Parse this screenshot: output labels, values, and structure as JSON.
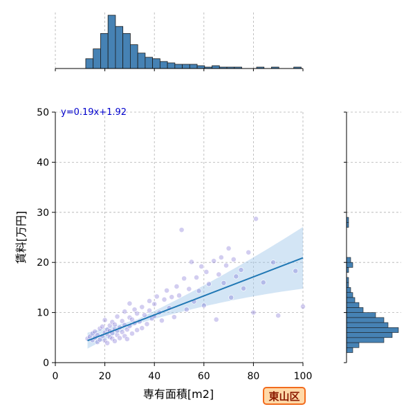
{
  "chart_data": {
    "type": "scatter",
    "xlabel": "専有面積[m2]",
    "ylabel": "賃料[万円]",
    "xlim": [
      0,
      100
    ],
    "ylim": [
      0,
      50
    ],
    "xticks": [
      0,
      20,
      40,
      60,
      80,
      100
    ],
    "yticks": [
      0,
      10,
      20,
      30,
      40,
      50
    ],
    "grid": true,
    "regression": {
      "label": "y=0.19x+1.92",
      "slope": 0.19,
      "intercept": 1.92,
      "ci_band": true
    },
    "scatter_points": [
      [
        13,
        4.8
      ],
      [
        14,
        5.2
      ],
      [
        15,
        4.5
      ],
      [
        15,
        5.8
      ],
      [
        16,
        6.2
      ],
      [
        16,
        5.0
      ],
      [
        17,
        4.1
      ],
      [
        17,
        5.5
      ],
      [
        18,
        6.8
      ],
      [
        18,
        4.6
      ],
      [
        19,
        5.3
      ],
      [
        19,
        7.2
      ],
      [
        20,
        6.0
      ],
      [
        20,
        4.4
      ],
      [
        20,
        8.5
      ],
      [
        21,
        5.7
      ],
      [
        21,
        6.6
      ],
      [
        21,
        3.9
      ],
      [
        22,
        7.4
      ],
      [
        22,
        5.1
      ],
      [
        22,
        6.3
      ],
      [
        23,
        4.8
      ],
      [
        23,
        8.1
      ],
      [
        23,
        5.9
      ],
      [
        24,
        6.7
      ],
      [
        24,
        4.3
      ],
      [
        24,
        7.6
      ],
      [
        25,
        5.5
      ],
      [
        25,
        9.2
      ],
      [
        25,
        6.4
      ],
      [
        26,
        7.0
      ],
      [
        26,
        4.9
      ],
      [
        27,
        8.3
      ],
      [
        27,
        6.1
      ],
      [
        28,
        5.3
      ],
      [
        28,
        10.2
      ],
      [
        28,
        7.5
      ],
      [
        29,
        6.6
      ],
      [
        29,
        4.7
      ],
      [
        30,
        9.0
      ],
      [
        30,
        11.8
      ],
      [
        30,
        7.3
      ],
      [
        31,
        8.6
      ],
      [
        31,
        5.8
      ],
      [
        32,
        10.6
      ],
      [
        32,
        7.9
      ],
      [
        33,
        6.5
      ],
      [
        33,
        9.8
      ],
      [
        34,
        8.2
      ],
      [
        35,
        11.1
      ],
      [
        35,
        6.9
      ],
      [
        36,
        9.5
      ],
      [
        37,
        7.7
      ],
      [
        38,
        10.4
      ],
      [
        38,
        12.3
      ],
      [
        39,
        8.8
      ],
      [
        40,
        11.7
      ],
      [
        40,
        9.3
      ],
      [
        41,
        13.2
      ],
      [
        42,
        10.0
      ],
      [
        43,
        8.4
      ],
      [
        44,
        12.6
      ],
      [
        45,
        14.4
      ],
      [
        46,
        10.9
      ],
      [
        47,
        13.1
      ],
      [
        48,
        9.1
      ],
      [
        49,
        15.2
      ],
      [
        50,
        13.4
      ],
      [
        51,
        26.5
      ],
      [
        52,
        16.8
      ],
      [
        53,
        10.6
      ],
      [
        54,
        14.7
      ],
      [
        55,
        20.1
      ],
      [
        56,
        12.2
      ],
      [
        57,
        17.0
      ],
      [
        58,
        14.3
      ],
      [
        59,
        19.2
      ],
      [
        60,
        11.4
      ],
      [
        61,
        18.1
      ],
      [
        62,
        15.7
      ],
      [
        64,
        20.3
      ],
      [
        65,
        8.6
      ],
      [
        66,
        17.6
      ],
      [
        67,
        21.0
      ],
      [
        68,
        15.9
      ],
      [
        69,
        19.4
      ],
      [
        70,
        22.8
      ],
      [
        71,
        13.0
      ],
      [
        72,
        20.6
      ],
      [
        73,
        17.2
      ],
      [
        75,
        18.5
      ],
      [
        76,
        14.8
      ],
      [
        78,
        22.0
      ],
      [
        80,
        10.0
      ],
      [
        81,
        28.7
      ],
      [
        84,
        16.0
      ],
      [
        88,
        20.0
      ],
      [
        90,
        9.4
      ],
      [
        97,
        18.3
      ],
      [
        100,
        11.2
      ]
    ],
    "x_histogram": {
      "bin_width": 3,
      "bins": [
        [
          12,
          7
        ],
        [
          15,
          14
        ],
        [
          18,
          25
        ],
        [
          21,
          38
        ],
        [
          24,
          30
        ],
        [
          27,
          25
        ],
        [
          30,
          17
        ],
        [
          33,
          11
        ],
        [
          36,
          8
        ],
        [
          39,
          7
        ],
        [
          42,
          5
        ],
        [
          45,
          4
        ],
        [
          48,
          3
        ],
        [
          51,
          3
        ],
        [
          54,
          3
        ],
        [
          57,
          2
        ],
        [
          60,
          1
        ],
        [
          63,
          2
        ],
        [
          66,
          1
        ],
        [
          69,
          1
        ],
        [
          72,
          1
        ],
        [
          75,
          0
        ],
        [
          78,
          0
        ],
        [
          81,
          1
        ],
        [
          84,
          0
        ],
        [
          87,
          1
        ],
        [
          90,
          0
        ],
        [
          93,
          0
        ],
        [
          96,
          1
        ]
      ]
    },
    "y_histogram": {
      "bin_width": 1,
      "bins": [
        [
          2,
          3
        ],
        [
          3,
          6
        ],
        [
          4,
          18
        ],
        [
          5,
          22
        ],
        [
          6,
          25
        ],
        [
          7,
          20
        ],
        [
          8,
          18
        ],
        [
          9,
          14
        ],
        [
          10,
          8
        ],
        [
          11,
          6
        ],
        [
          12,
          4
        ],
        [
          13,
          3
        ],
        [
          14,
          2
        ],
        [
          15,
          1
        ],
        [
          16,
          1
        ],
        [
          17,
          0
        ],
        [
          18,
          1
        ],
        [
          19,
          3
        ],
        [
          20,
          2
        ],
        [
          21,
          0
        ],
        [
          22,
          0
        ],
        [
          23,
          0
        ],
        [
          24,
          0
        ],
        [
          25,
          0
        ],
        [
          26,
          0
        ],
        [
          27,
          1
        ],
        [
          28,
          1
        ],
        [
          29,
          0
        ],
        [
          30,
          0
        ]
      ]
    }
  },
  "colors": {
    "point": "#6a5acd",
    "line": "#1f77b4",
    "band": "#9ec5e8",
    "hist": "#4682b4",
    "grid": "#b0b0b0"
  },
  "badge": {
    "text": "東山区"
  }
}
